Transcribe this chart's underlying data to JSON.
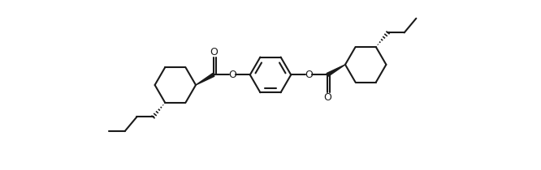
{
  "background": "#ffffff",
  "line_color": "#1a1a1a",
  "line_width": 1.5,
  "figsize": [
    6.66,
    2.1
  ],
  "dpi": 100,
  "xlim": [
    0,
    13
  ],
  "ylim": [
    -1.0,
    4.0
  ]
}
